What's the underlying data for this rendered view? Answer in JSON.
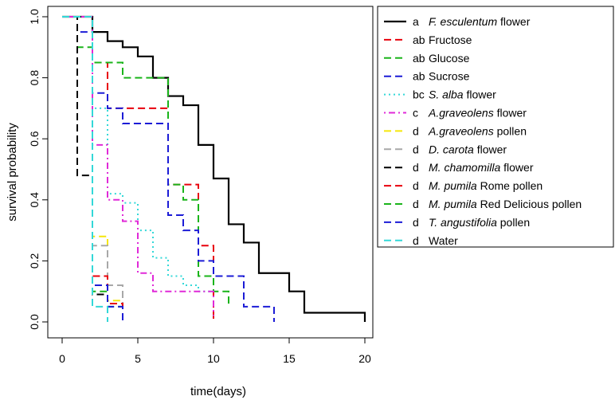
{
  "chart_data": {
    "type": "line",
    "title": "",
    "xlabel": "time(days)",
    "ylabel": "survival probability",
    "xlim": [
      0,
      20
    ],
    "ylim": [
      0,
      1
    ],
    "xticks": [
      {
        "value": 0,
        "label": "0"
      },
      {
        "value": 5,
        "label": "5"
      },
      {
        "value": 10,
        "label": "10"
      },
      {
        "value": 15,
        "label": "15"
      },
      {
        "value": 20,
        "label": "20"
      }
    ],
    "yticks": [
      {
        "value": 0,
        "label": "0.0"
      },
      {
        "value": 0.2,
        "label": "0.2"
      },
      {
        "value": 0.4,
        "label": "0.4"
      },
      {
        "value": 0.6,
        "label": "0.6"
      },
      {
        "value": 0.8,
        "label": "0.8"
      },
      {
        "value": 1,
        "label": "1.0"
      }
    ],
    "legend_position": "right, outside plot",
    "series": [
      {
        "name": "F. esculentum flower",
        "group": "a",
        "prefix": "",
        "italic": "F. esculentum",
        "suffix": " flower",
        "color": "#000000",
        "dash": "solid",
        "points": [
          [
            1,
            1
          ],
          [
            2,
            0.95
          ],
          [
            3,
            0.92
          ],
          [
            4,
            0.9
          ],
          [
            5,
            0.87
          ],
          [
            6,
            0.8
          ],
          [
            7,
            0.74
          ],
          [
            8,
            0.71
          ],
          [
            9,
            0.58
          ],
          [
            10,
            0.47
          ],
          [
            11,
            0.32
          ],
          [
            12,
            0.26
          ],
          [
            13,
            0.16
          ],
          [
            15,
            0.1
          ],
          [
            16,
            0.03
          ],
          [
            20,
            0
          ]
        ]
      },
      {
        "name": "Fructose",
        "group": "ab",
        "prefix": "Fructose",
        "italic": "",
        "suffix": "",
        "color": "#e8000b",
        "dash": "dashed",
        "points": [
          [
            1,
            1
          ],
          [
            2,
            0.85
          ],
          [
            3,
            0.7
          ],
          [
            7,
            0.45
          ],
          [
            8,
            0.45
          ],
          [
            9,
            0.25
          ],
          [
            10,
            0.01
          ]
        ]
      },
      {
        "name": "Glucose",
        "group": "ab",
        "prefix": "Glucose",
        "italic": "",
        "suffix": "",
        "color": "#1ab41a",
        "dash": "dashed",
        "points": [
          [
            1,
            0.9
          ],
          [
            2,
            0.85
          ],
          [
            4,
            0.8
          ],
          [
            7,
            0.45
          ],
          [
            8,
            0.4
          ],
          [
            9,
            0.15
          ],
          [
            10,
            0.1
          ],
          [
            11,
            0.05
          ]
        ]
      },
      {
        "name": "Sucrose",
        "group": "ab",
        "prefix": "Sucrose",
        "italic": "",
        "suffix": "",
        "color": "#1c1cd6",
        "dash": "dashed",
        "points": [
          [
            1,
            0.95
          ],
          [
            2,
            0.75
          ],
          [
            3,
            0.7
          ],
          [
            4,
            0.65
          ],
          [
            7,
            0.35
          ],
          [
            8,
            0.3
          ],
          [
            9,
            0.2
          ],
          [
            10,
            0.15
          ],
          [
            12,
            0.05
          ],
          [
            14,
            0
          ]
        ]
      },
      {
        "name": "S. alba flower",
        "group": "bc",
        "prefix": "",
        "italic": "S. alba",
        "suffix": " flower",
        "color": "#33d8d8",
        "dash": "dotted",
        "points": [
          [
            1,
            1
          ],
          [
            2,
            0.7
          ],
          [
            3,
            0.42
          ],
          [
            4,
            0.39
          ],
          [
            5,
            0.3
          ],
          [
            6,
            0.21
          ],
          [
            7,
            0.15
          ],
          [
            8,
            0.12
          ],
          [
            9,
            0.1
          ],
          [
            10,
            0.02
          ]
        ]
      },
      {
        "name": "A.graveolens flower",
        "group": "c",
        "prefix": "",
        "italic": "A.graveolens",
        "suffix": " flower",
        "color": "#e02ad8",
        "dash": "dashdot",
        "points": [
          [
            1,
            1
          ],
          [
            2,
            0.58
          ],
          [
            3,
            0.4
          ],
          [
            4,
            0.33
          ],
          [
            5,
            0.16
          ],
          [
            6,
            0.1
          ],
          [
            10,
            0.02
          ]
        ]
      },
      {
        "name": "A.graveolens pollen",
        "group": "d",
        "prefix": "",
        "italic": "A.graveolens",
        "suffix": " pollen",
        "color": "#f5e60a",
        "dash": "dashed",
        "points": [
          [
            1,
            1
          ],
          [
            2,
            0.28
          ],
          [
            3,
            0.07
          ],
          [
            4,
            0
          ]
        ]
      },
      {
        "name": "D. carota flower",
        "group": "d",
        "prefix": "",
        "italic": "D. carota",
        "suffix": " flower",
        "color": "#a8a8a8",
        "dash": "dashed",
        "points": [
          [
            1,
            1
          ],
          [
            2,
            0.25
          ],
          [
            3,
            0.12
          ],
          [
            4,
            0
          ]
        ]
      },
      {
        "name": "M. chamomilla flower",
        "group": "d",
        "prefix": "",
        "italic": "M. chamomilla",
        "suffix": " flower",
        "color": "#000000",
        "dash": "dashed",
        "points": [
          [
            1,
            0.48
          ],
          [
            2,
            0.09
          ],
          [
            3,
            0.06
          ],
          [
            4,
            0
          ]
        ]
      },
      {
        "name": "M. pumila Rome pollen",
        "group": "d",
        "prefix": "",
        "italic": "M. pumila",
        "suffix": " Rome pollen",
        "color": "#e8000b",
        "dash": "dashed",
        "points": [
          [
            1,
            1
          ],
          [
            2,
            0.15
          ],
          [
            3,
            0.06
          ],
          [
            4,
            0
          ]
        ]
      },
      {
        "name": "M. pumila Red Delicious pollen",
        "group": "d",
        "prefix": "",
        "italic": "M. pumila",
        "suffix": " Red Delicious pollen",
        "color": "#1ab41a",
        "dash": "dashed",
        "points": [
          [
            1,
            1
          ],
          [
            2,
            0.1
          ],
          [
            3,
            0.05
          ],
          [
            4,
            0
          ]
        ]
      },
      {
        "name": "T. angustifolia pollen",
        "group": "d",
        "prefix": "",
        "italic": "T. angustifolia",
        "suffix": " pollen",
        "color": "#1c1cd6",
        "dash": "dashed",
        "points": [
          [
            1,
            1
          ],
          [
            2,
            0.12
          ],
          [
            3,
            0.05
          ],
          [
            4,
            0
          ]
        ]
      },
      {
        "name": "Water",
        "group": "d",
        "prefix": "Water",
        "italic": "",
        "suffix": "",
        "color": "#33d8d8",
        "dash": "dashed",
        "points": [
          [
            1,
            1
          ],
          [
            2,
            0.05
          ],
          [
            3,
            0
          ]
        ]
      }
    ]
  }
}
